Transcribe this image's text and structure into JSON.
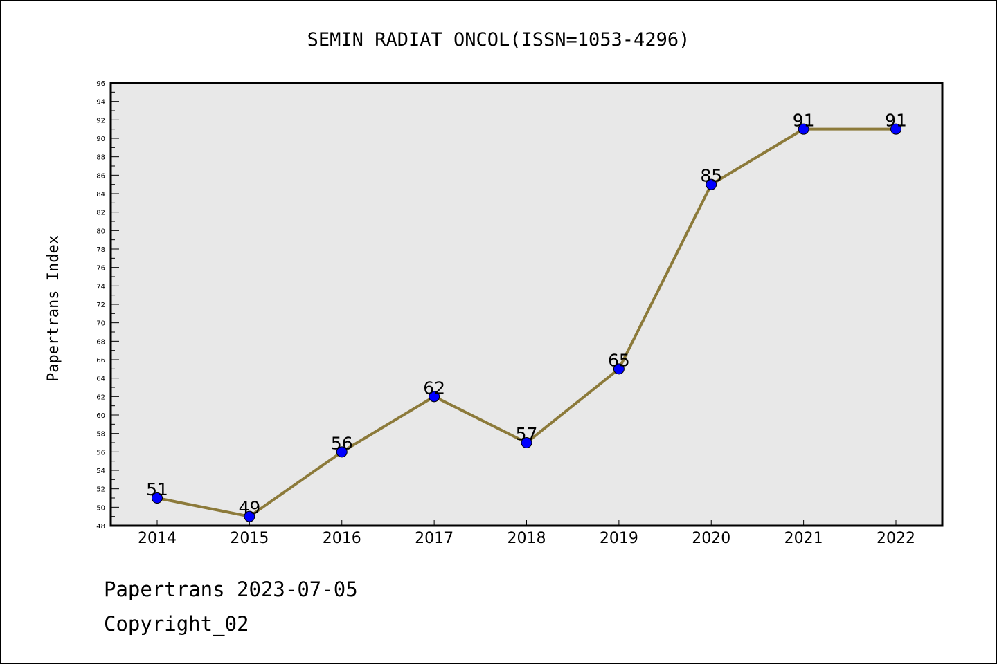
{
  "chart_data": {
    "type": "line",
    "title": "SEMIN RADIAT ONCOL(ISSN=1053-4296)",
    "xlabel": "",
    "ylabel": "Papertrans Index",
    "categories": [
      "2014",
      "2015",
      "2016",
      "2017",
      "2018",
      "2019",
      "2020",
      "2021",
      "2022"
    ],
    "series": [
      {
        "values": [
          51,
          49,
          56,
          62,
          57,
          65,
          85,
          91,
          91
        ]
      }
    ],
    "ylim": [
      48,
      96
    ],
    "y_major_step": 2,
    "y_minor_step": 1,
    "grid": false,
    "legend": "none",
    "colors": {
      "line": "#8c7a3a",
      "marker": "#0000ff",
      "plot_background": "#e8e8e8"
    }
  },
  "footer": {
    "line1": "Papertrans 2023-07-05",
    "line2": "Copyright_02"
  }
}
